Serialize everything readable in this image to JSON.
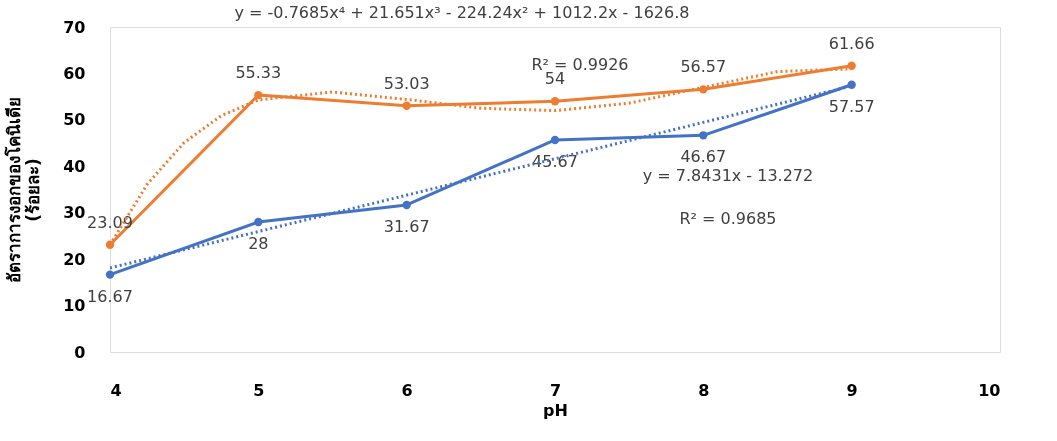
{
  "chart_data": {
    "type": "line",
    "xlabel": "pH",
    "ylabel": "อัตราการงอกของโคนิเดีย (ร้อยละ)",
    "x": [
      4,
      5,
      6,
      7,
      8,
      9
    ],
    "xlim": [
      4,
      10
    ],
    "xticks": [
      4,
      5,
      6,
      7,
      8,
      9,
      10
    ],
    "ylim": [
      0,
      70
    ],
    "yticks": [
      0,
      10,
      20,
      30,
      40,
      50,
      60,
      70
    ],
    "grid": false,
    "marker": "circle",
    "series": [
      {
        "color": "#4472c4",
        "line_style": "solid",
        "values": [
          16.67,
          28,
          31.67,
          45.67,
          46.67,
          57.57
        ],
        "data_labels": true
      },
      {
        "color": "#ed7d31",
        "line_style": "solid",
        "values": [
          23.09,
          55.33,
          53.03,
          54,
          56.57,
          61.66
        ],
        "data_labels": true
      },
      {
        "type": "line",
        "color": "#4472c4",
        "line_style": "dotted",
        "marker": "none",
        "x": [
          4,
          9
        ],
        "values": [
          18.1,
          57.3
        ]
      },
      {
        "type": "line",
        "color": "#ed7d31",
        "line_style": "dotted",
        "marker": "none",
        "x": [
          4,
          4.25,
          4.5,
          4.75,
          5,
          5.5,
          6,
          6.5,
          7,
          7.5,
          8,
          8.5,
          9
        ],
        "values": [
          23.1,
          36.1,
          45.1,
          50.9,
          54.3,
          56.0,
          54.4,
          52.5,
          52.0,
          53.6,
          57.0,
          60.4,
          61.0
        ]
      }
    ],
    "annotations": [
      "y = -0.7685x⁴ + 21.651x³ - 224.24x² + 1012.2x - 1626.8",
      "R² = 0.9926",
      "y = 7.8431x - 13.272",
      "R² = 0.9685"
    ]
  }
}
